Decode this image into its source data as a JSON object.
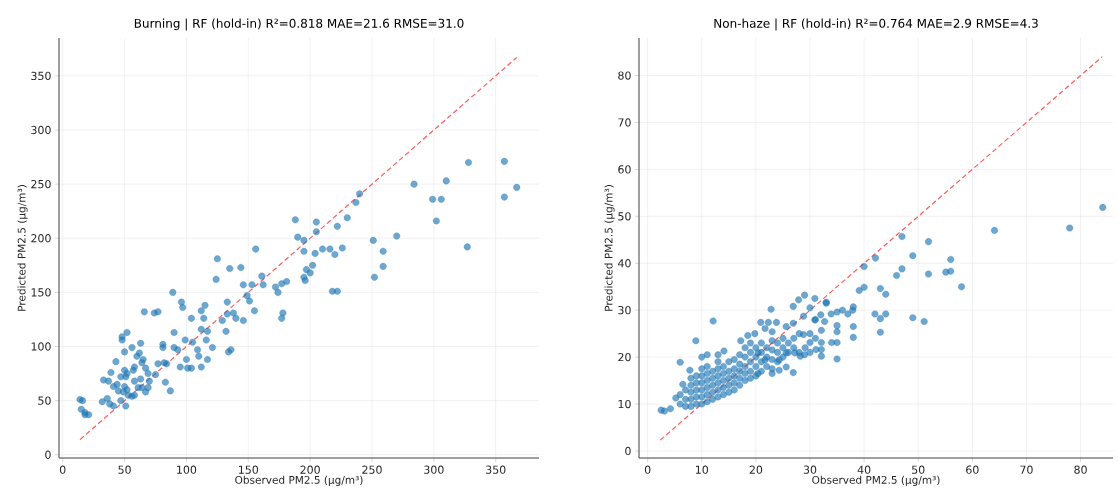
{
  "chart_data": [
    {
      "type": "scatter",
      "title": "Burning | RF (hold-in)  R²=0.818  MAE=21.6  RMSE=31.0",
      "xlabel": "Observed PM2.5 (μg/m³)",
      "ylabel": "Predicted PM2.5 (μg/m³)",
      "xlim": [
        -3,
        385
      ],
      "ylim": [
        -3,
        385
      ],
      "xticks": [
        0,
        50,
        100,
        150,
        200,
        250,
        300,
        350
      ],
      "yticks": [
        0,
        50,
        100,
        150,
        200,
        250,
        300,
        350
      ],
      "grid": true,
      "marker": "circle",
      "series": [
        {
          "type": "scatter",
          "color": "#1f77b4",
          "x": [
            328,
            357,
            367,
            357,
            284,
            310,
            299,
            306,
            302,
            327,
            270,
            251,
            259,
            259,
            252,
            240,
            237,
            230,
            222,
            226,
            220,
            216,
            210,
            204,
            205,
            205,
            202,
            200,
            197,
            195,
            196,
            195,
            195,
            190,
            188,
            218,
            222,
            181,
            177,
            172,
            174,
            178,
            177,
            156,
            161,
            162,
            153,
            146,
            149,
            151,
            155,
            146,
            144,
            135,
            125,
            124,
            133,
            133,
            138,
            140,
            129,
            132,
            134,
            136,
            115,
            112,
            114,
            104,
            89,
            96,
            97,
            90,
            112,
            117,
            116,
            121,
            117,
            112,
            104,
            101,
            95,
            84,
            87,
            83,
            77,
            82,
            75,
            74,
            77,
            66,
            81,
            81,
            90,
            93,
            99,
            105,
            109,
            110,
            100,
            52,
            48,
            48,
            50,
            43,
            39,
            33,
            37,
            32,
            36,
            38,
            41,
            51,
            47,
            52,
            63,
            62,
            60,
            65,
            56,
            50,
            52,
            57,
            58,
            63,
            67,
            64,
            67,
            69,
            50,
            45,
            56,
            53,
            58,
            61,
            51,
            47,
            44,
            49,
            41,
            14,
            16,
            15,
            18,
            21,
            18,
            69,
            70,
            58,
            64
          ],
          "values": [
            270,
            271,
            247,
            238,
            250,
            253,
            236,
            236,
            216,
            192,
            202,
            198,
            188,
            174,
            164,
            241,
            233,
            219,
            211,
            191,
            185,
            190,
            190,
            186,
            215,
            206,
            175,
            168,
            171,
            164,
            161,
            188,
            198,
            201,
            217,
            151,
            151,
            160,
            158,
            155,
            150,
            131,
            126,
            190,
            165,
            157,
            157,
            157,
            147,
            142,
            133,
            124,
            173,
            172,
            181,
            162,
            141,
            130,
            131,
            126,
            124,
            114,
            95,
            97,
            138,
            133,
            126,
            126,
            150,
            141,
            136,
            113,
            116,
            114,
            106,
            99,
            88,
            81,
            80,
            80,
            81,
            84,
            59,
            67,
            84,
            85,
            74,
            131,
            132,
            132,
            102,
            99,
            99,
            97,
            106,
            104,
            97,
            91,
            88,
            113,
            109,
            106,
            95,
            86,
            76,
            69,
            68,
            49,
            52,
            47,
            45,
            45,
            50,
            60,
            103,
            94,
            91,
            88,
            99,
            78,
            75,
            78,
            68,
            70,
            80,
            62,
            58,
            62,
            63,
            59,
            54,
            55,
            55,
            62,
            72,
            72,
            65,
            58,
            63,
            51,
            50,
            42,
            37,
            37,
            39,
            75,
            68,
            81,
            85
          ]
        },
        {
          "type": "line",
          "color": "#ff5c5c",
          "line_style": "dashed",
          "marker": "none",
          "x": [
            14,
            367
          ],
          "values": [
            14,
            367
          ]
        }
      ]
    },
    {
      "type": "scatter",
      "title": "Non-haze | RF (hold-in)  R²=0.764  MAE=2.9  RMSE=4.3",
      "xlabel": "Observed PM2.5 (μg/m³)",
      "ylabel": "Predicted PM2.5 (μg/m³)",
      "xlim": [
        -1.6,
        86
      ],
      "ylim": [
        -1.5,
        88
      ],
      "xticks": [
        0,
        10,
        20,
        30,
        40,
        50,
        60,
        70,
        80
      ],
      "yticks": [
        0,
        10,
        20,
        30,
        40,
        50,
        60,
        70,
        80
      ],
      "grid": true,
      "marker": "circle",
      "series": [
        {
          "type": "scatter",
          "color": "#1f77b4",
          "x": [
            84.1,
            78.0,
            64.1,
            47.0,
            51.9,
            49.0,
            56.0,
            47.0,
            46.0,
            51.9,
            55.1,
            56.0,
            58.0,
            42.1,
            40.0,
            40.0,
            39.1,
            43.0,
            44.0,
            42.0,
            43.0,
            44.0,
            43.0,
            49.0,
            51.1,
            38.0,
            37.9,
            38.0,
            38.0,
            37,
            36,
            35,
            35,
            35,
            35,
            35,
            33.9,
            34.0,
            33,
            32.7,
            32.1,
            32.1,
            32.1,
            32.1,
            31.1,
            30.9,
            30.0,
            30.9,
            29.0,
            27.9,
            26.9,
            28.8,
            28.8,
            29.1,
            30,
            26.9,
            25.6,
            24.3,
            22.8,
            20.9,
            22.3,
            23.8,
            12.1,
            8.9,
            6.0,
            11.0,
            10.0,
            14.1,
            13.0,
            2.5,
            3.1,
            4.2,
            5.2,
            6.5,
            7.8,
            17.2,
            18.5,
            19.8,
            21.7,
            23,
            25.6,
            26.9,
            20.4,
            21.7,
            20.4,
            23,
            24.3,
            25.6,
            27.2,
            28.2,
            6,
            6,
            7,
            7,
            7,
            8,
            8,
            8,
            8,
            8,
            9,
            9,
            9,
            9,
            9,
            10,
            10,
            10,
            10,
            10,
            10,
            11,
            11,
            11,
            11,
            11,
            11,
            12,
            12,
            12,
            12,
            12,
            13,
            13,
            13,
            13,
            13,
            13,
            14,
            14,
            14,
            14,
            14,
            15,
            15,
            15,
            15,
            15,
            16,
            16,
            16,
            16,
            16,
            17,
            17,
            17,
            17,
            17,
            18,
            18,
            18,
            18,
            18,
            19,
            19,
            19,
            19,
            19,
            20,
            20,
            20,
            20,
            21,
            21,
            21,
            21,
            22,
            22,
            22,
            23,
            23,
            23,
            23,
            24,
            24,
            24,
            25,
            25,
            25,
            26,
            26,
            27,
            27,
            28,
            28,
            29,
            30,
            30,
            31,
            31,
            32,
            33
          ],
          "values": [
            51.9,
            47.5,
            47.0,
            45.7,
            44.6,
            41.6,
            40.8,
            38.8,
            37.4,
            37.7,
            38.1,
            38.3,
            35.0,
            41.1,
            39.3,
            34.9,
            34.2,
            34.6,
            33.4,
            29.2,
            28.2,
            29.2,
            25.3,
            28.4,
            27.6,
            30.7,
            30.0,
            26.5,
            24.2,
            29.2,
            30.0,
            29.6,
            26.7,
            25.4,
            23.1,
            19.6,
            29.2,
            23.1,
            31.7,
            27.6,
            25.7,
            23.1,
            20.2,
            21.6,
            21.6,
            32.5,
            30.5,
            27.9,
            33.2,
            32.2,
            30.8,
            28.7,
            24.8,
            22.0,
            23.1,
            16.7,
            17.9,
            17.2,
            30.2,
            27.4,
            27.4,
            27.4,
            27.7,
            23.5,
            18.9,
            20.5,
            20.0,
            21.3,
            20.5,
            8.7,
            8.5,
            9.0,
            11.3,
            14.2,
            17.2,
            23.5,
            24.6,
            25.0,
            26.1,
            25.4,
            26.5,
            27.2,
            20.9,
            19.4,
            16.5,
            16.5,
            19.4,
            20.9,
            20.9,
            20.2,
            10,
            12,
            9.5,
            11,
            13,
            9.5,
            11,
            12.5,
            14,
            15.5,
            10,
            11.5,
            13,
            14.5,
            16,
            10,
            11.5,
            13,
            14.5,
            16,
            17.5,
            10.5,
            12,
            13.5,
            15,
            16.5,
            18,
            11,
            12.5,
            14,
            15.5,
            17,
            11.5,
            13,
            14.5,
            16,
            17.5,
            19,
            12,
            13.5,
            15,
            16.5,
            18,
            12.5,
            14,
            15.5,
            17,
            19,
            13,
            14.5,
            16,
            17.5,
            19.5,
            14,
            15.5,
            17,
            18.5,
            20.5,
            15,
            16.5,
            18,
            20,
            22,
            15.5,
            17,
            19,
            21,
            23,
            16,
            18,
            20,
            22,
            17,
            19,
            21,
            23,
            18,
            20,
            22,
            17.5,
            19.5,
            21.5,
            23.5,
            19,
            21,
            23,
            20,
            22,
            24,
            21,
            23,
            22,
            24,
            21,
            25,
            20.5,
            21,
            25,
            24,
            28,
            29,
            31.5
          ]
        },
        {
          "type": "line",
          "color": "#ff5c5c",
          "line_style": "dashed",
          "marker": "none",
          "x": [
            2.3,
            84
          ],
          "values": [
            2.3,
            84
          ]
        }
      ]
    }
  ]
}
